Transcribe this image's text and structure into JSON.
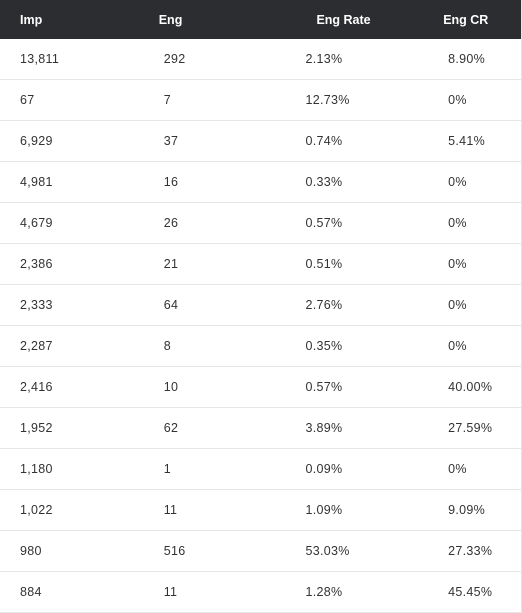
{
  "table": {
    "headers": [
      "Imp",
      "Eng",
      "Eng Rate",
      "Eng CR"
    ],
    "rows": [
      [
        "13,811",
        "292",
        "2.13%",
        "8.90%"
      ],
      [
        "67",
        "7",
        "12.73%",
        "0%"
      ],
      [
        "6,929",
        "37",
        "0.74%",
        "5.41%"
      ],
      [
        "4,981",
        "16",
        "0.33%",
        "0%"
      ],
      [
        "4,679",
        "26",
        "0.57%",
        "0%"
      ],
      [
        "2,386",
        "21",
        "0.51%",
        "0%"
      ],
      [
        "2,333",
        "64",
        "2.76%",
        "0%"
      ],
      [
        "2,287",
        "8",
        "0.35%",
        "0%"
      ],
      [
        "2,416",
        "10",
        "0.57%",
        "40.00%"
      ],
      [
        "1,952",
        "62",
        "3.89%",
        "27.59%"
      ],
      [
        "1,180",
        "1",
        "0.09%",
        "0%"
      ],
      [
        "1,022",
        "11",
        "1.09%",
        "9.09%"
      ],
      [
        "980",
        "516",
        "53.03%",
        "27.33%"
      ],
      [
        "884",
        "11",
        "1.28%",
        "45.45%"
      ]
    ]
  }
}
